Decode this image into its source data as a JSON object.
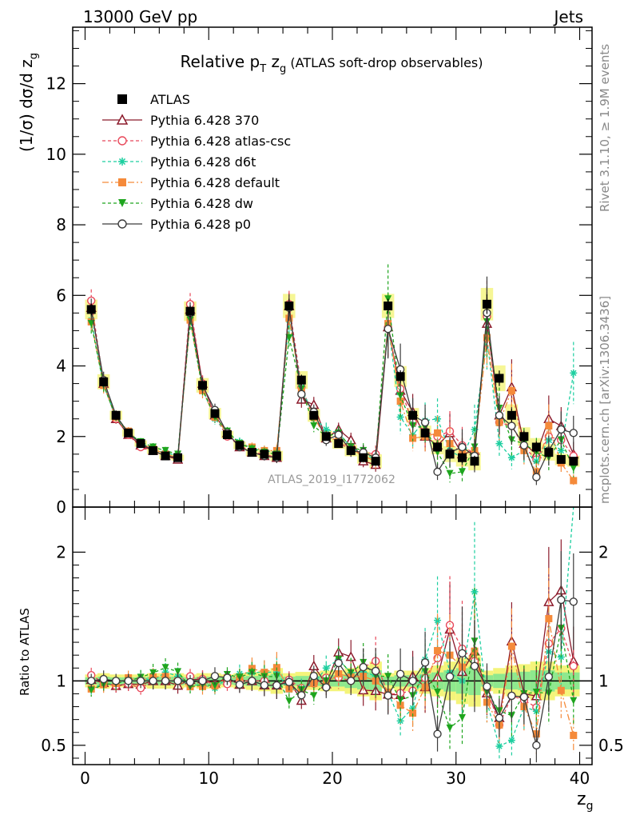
{
  "header": {
    "left": "13000 GeV pp",
    "right": "Jets"
  },
  "side_labels": {
    "rivet": "Rivet 3.1.10, ≥ 1.9M events",
    "mcplots": "mcplots.cern.ch [arXiv:1306.3436]"
  },
  "watermark": "ATLAS_2019_I1772062",
  "chart_data": [
    {
      "type": "line",
      "title_main": "Relative p",
      "title_sub1": "T",
      "title_mid": " z",
      "title_sub2": "g",
      "title_rest": " (ATLAS soft-drop observables)",
      "ylabel": "(1/σ) dσ/d z",
      "ylabel_sub": "g",
      "xlim": [
        -1,
        41
      ],
      "ylim": [
        0,
        13.6
      ],
      "yticks": [
        0,
        2,
        4,
        6,
        8,
        10,
        12
      ],
      "x": [
        0.5,
        1.5,
        2.5,
        3.5,
        4.5,
        5.5,
        6.5,
        7.5,
        8.5,
        9.5,
        10.5,
        11.5,
        12.5,
        13.5,
        14.5,
        15.5,
        16.5,
        17.5,
        18.5,
        19.5,
        20.5,
        21.5,
        22.5,
        23.5,
        24.5,
        25.5,
        26.5,
        27.5,
        28.5,
        29.5,
        30.5,
        31.5,
        32.5,
        33.5,
        34.5,
        35.5,
        36.5,
        37.5,
        38.5,
        39.5
      ],
      "series": [
        {
          "name": "ATLAS",
          "color": "#000000",
          "marker": "square-filled",
          "dash": "none",
          "values": [
            5.6,
            3.55,
            2.6,
            2.1,
            1.8,
            1.6,
            1.45,
            1.4,
            5.55,
            3.45,
            2.65,
            2.05,
            1.75,
            1.55,
            1.5,
            1.45,
            5.7,
            3.6,
            2.6,
            2.0,
            1.8,
            1.6,
            1.4,
            1.3,
            5.7,
            3.7,
            2.6,
            2.1,
            1.7,
            1.5,
            1.4,
            1.3,
            5.75,
            3.65,
            2.6,
            2.0,
            1.7,
            1.55,
            1.35,
            1.3
          ]
        },
        {
          "name": "Pythia 6.428 370",
          "color": "#8b1a2b",
          "marker": "triangle-open",
          "dash": "none",
          "values": [
            5.65,
            3.5,
            2.5,
            2.05,
            1.75,
            1.6,
            1.45,
            1.35,
            5.6,
            3.5,
            2.6,
            2.1,
            1.7,
            1.55,
            1.45,
            1.4,
            5.7,
            3.05,
            2.9,
            1.95,
            2.2,
            1.9,
            1.3,
            1.2,
            5.1,
            3.3,
            2.7,
            2.0,
            1.75,
            2.1,
            1.5,
            1.6,
            5.2,
            2.6,
            3.4,
            1.8,
            1.5,
            2.5,
            2.3,
            1.5
          ]
        },
        {
          "name": "Pythia 6.428 atlas-csc",
          "color": "#e8485a",
          "marker": "circle-open",
          "dash": "4,3",
          "values": [
            5.85,
            3.5,
            2.5,
            2.05,
            1.7,
            1.6,
            1.45,
            1.4,
            5.75,
            3.5,
            2.55,
            2.0,
            1.75,
            1.55,
            1.5,
            1.4,
            5.75,
            3.4,
            2.55,
            2.05,
            1.85,
            1.6,
            1.55,
            1.5,
            5.1,
            3.35,
            2.4,
            2.15,
            2.0,
            2.15,
            1.75,
            1.5,
            5.4,
            2.4,
            2.3,
            1.7,
            1.35,
            2.0,
            1.9,
            1.45
          ]
        },
        {
          "name": "Pythia 6.428 d6t",
          "color": "#1dcfa0",
          "marker": "star",
          "dash": "4,3",
          "values": [
            5.3,
            3.45,
            2.55,
            2.1,
            1.85,
            1.6,
            1.55,
            1.45,
            5.35,
            3.35,
            2.5,
            2.1,
            1.85,
            1.65,
            1.6,
            1.55,
            5.3,
            3.4,
            2.55,
            2.2,
            2.1,
            1.7,
            1.5,
            1.35,
            5.2,
            2.55,
            2.05,
            2.45,
            2.5,
            1.6,
            1.4,
            2.2,
            4.8,
            1.8,
            1.4,
            1.6,
            1.3,
            1.9,
            1.6,
            3.8
          ]
        },
        {
          "name": "Pythia 6.428 default",
          "color": "#f58a3a",
          "marker": "square-filled",
          "dash": "8,3,2,3",
          "values": [
            5.25,
            3.45,
            2.55,
            2.15,
            1.8,
            1.65,
            1.5,
            1.4,
            5.3,
            3.3,
            2.55,
            2.1,
            1.8,
            1.7,
            1.6,
            1.6,
            5.35,
            3.3,
            2.55,
            1.95,
            1.9,
            1.65,
            1.45,
            1.3,
            5.2,
            3.0,
            1.95,
            2.0,
            2.1,
            1.8,
            1.55,
            1.6,
            4.8,
            2.4,
            3.3,
            1.6,
            1.0,
            2.3,
            1.25,
            0.75
          ]
        },
        {
          "name": "Pythia 6.428 dw",
          "color": "#1ea51e",
          "marker": "triangle-down-filled",
          "dash": "4,3",
          "values": [
            5.2,
            3.45,
            2.55,
            2.1,
            1.85,
            1.7,
            1.6,
            1.5,
            5.3,
            3.35,
            2.55,
            2.15,
            1.8,
            1.65,
            1.55,
            1.5,
            4.8,
            3.35,
            2.3,
            2.0,
            2.1,
            1.7,
            1.6,
            1.35,
            5.9,
            3.15,
            2.3,
            2.25,
            1.55,
            0.95,
            1.0,
            1.7,
            5.25,
            2.8,
            1.9,
            1.8,
            1.55,
            1.4,
            1.9,
            1.1
          ]
        },
        {
          "name": "Pythia 6.428 p0",
          "color": "#3c3c3c",
          "marker": "circle-open",
          "dash": "none",
          "values": [
            5.6,
            3.6,
            2.6,
            2.1,
            1.8,
            1.6,
            1.45,
            1.4,
            5.5,
            3.45,
            2.75,
            2.1,
            1.7,
            1.55,
            1.45,
            1.4,
            5.65,
            3.2,
            2.7,
            1.9,
            2.05,
            1.6,
            1.55,
            1.4,
            5.05,
            3.9,
            2.6,
            2.4,
            1.0,
            1.55,
            1.7,
            1.45,
            5.5,
            2.6,
            2.3,
            1.75,
            0.85,
            1.6,
            2.2,
            2.1
          ]
        }
      ],
      "ref_band_rel": [
        0.05,
        0.06,
        0.05,
        0.05,
        0.05,
        0.06,
        0.06,
        0.06,
        0.05,
        0.06,
        0.06,
        0.05,
        0.06,
        0.07,
        0.08,
        0.1,
        0.06,
        0.07,
        0.07,
        0.08,
        0.08,
        0.1,
        0.12,
        0.15,
        0.06,
        0.08,
        0.08,
        0.1,
        0.12,
        0.15,
        0.18,
        0.2,
        0.08,
        0.1,
        0.12,
        0.13,
        0.15,
        0.15,
        0.12,
        0.12
      ]
    },
    {
      "type": "line",
      "title": "",
      "ylabel": "Ratio to ATLAS",
      "xlabel": "z",
      "xlabel_sub": "g",
      "xlim": [
        -1,
        41
      ],
      "xticks": [
        0,
        10,
        20,
        30,
        40
      ],
      "ylim": [
        0.35,
        2.35
      ],
      "yticks": [
        0.5,
        1,
        2
      ],
      "ytick_labels": [
        "0.5",
        "1",
        "2"
      ]
    }
  ]
}
